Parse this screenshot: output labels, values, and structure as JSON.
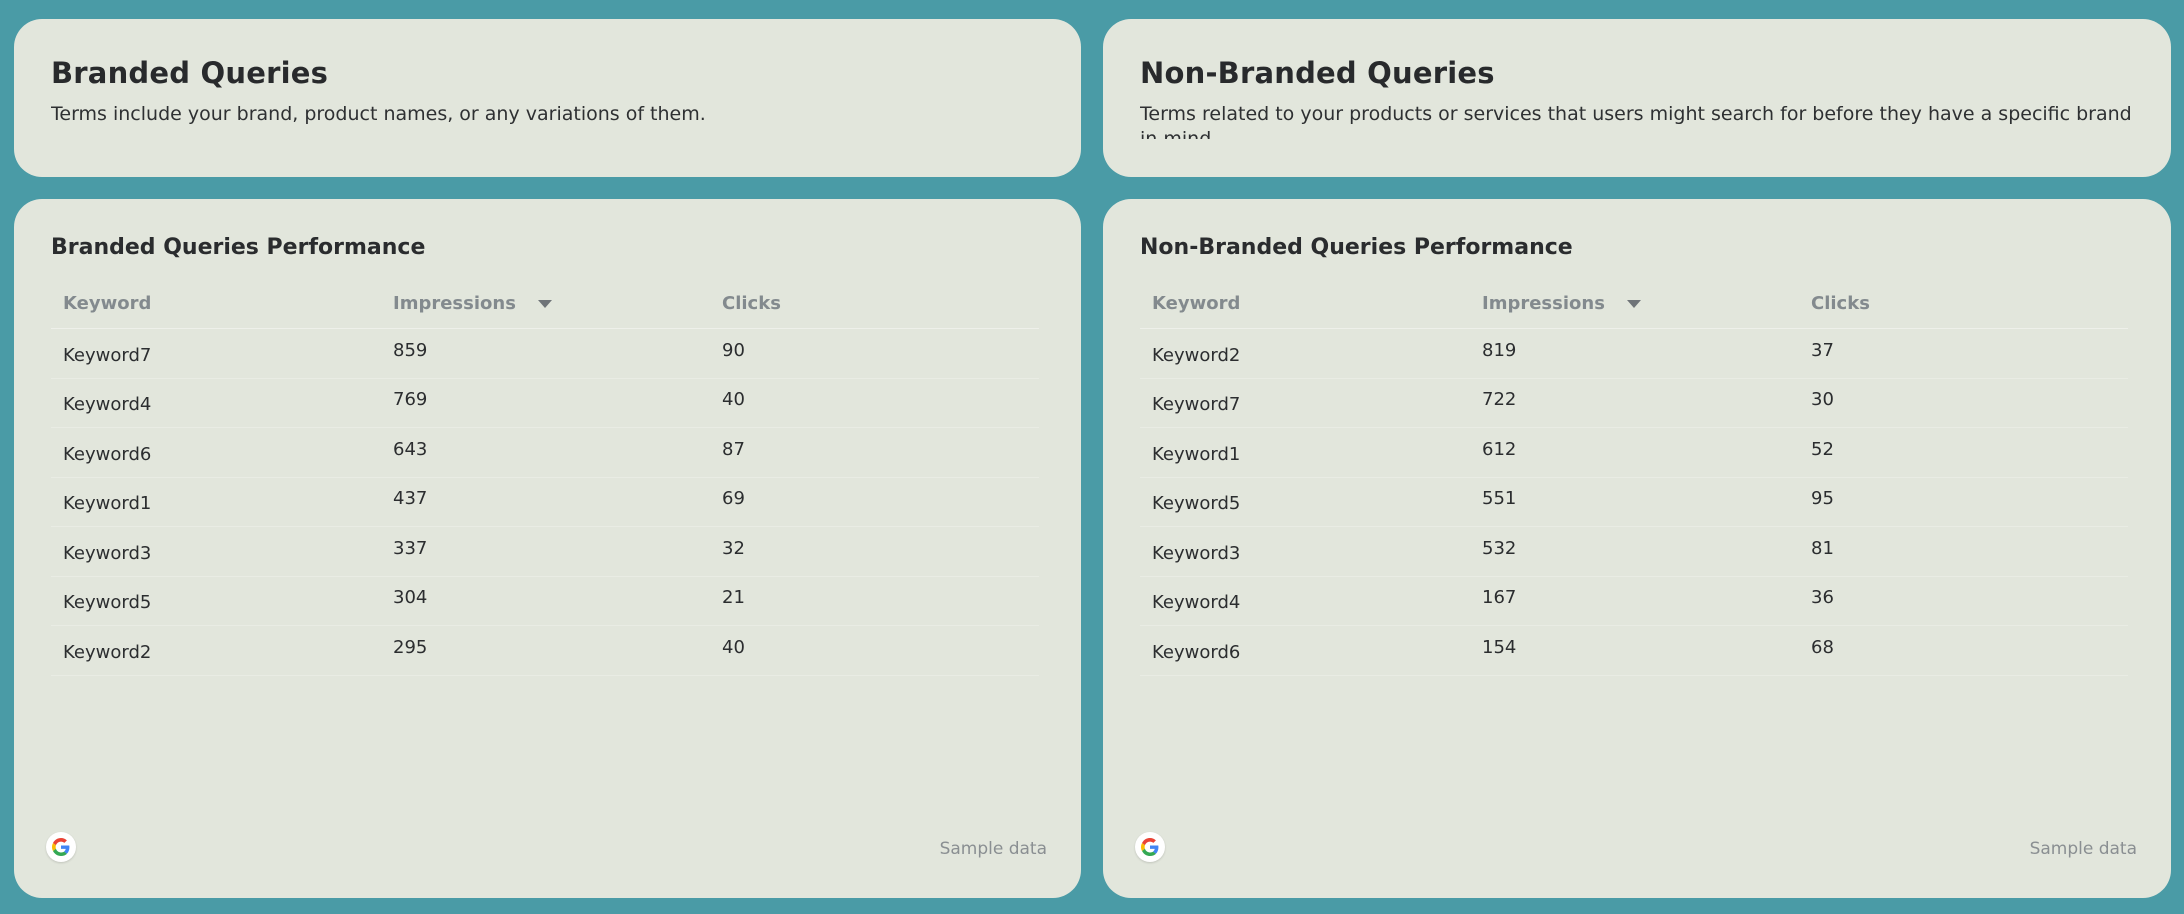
{
  "branded_header": {
    "title": "Branded Queries",
    "description": "Terms include your brand, product names, or any variations of them."
  },
  "nonbranded_header": {
    "title": "Non-Branded Queries",
    "description": "Terms related to your products or services that users might search for before they have a specific brand in mind."
  },
  "branded_table": {
    "title": "Branded Queries Performance",
    "columns": [
      "Keyword",
      "Impressions",
      "Clicks"
    ],
    "sort_icon": "caret-down-icon",
    "rows": [
      {
        "keyword": "Keyword7",
        "impressions": "859",
        "clicks": "90"
      },
      {
        "keyword": "Keyword4",
        "impressions": "769",
        "clicks": "40"
      },
      {
        "keyword": "Keyword6",
        "impressions": "643",
        "clicks": "87"
      },
      {
        "keyword": "Keyword1",
        "impressions": "437",
        "clicks": "69"
      },
      {
        "keyword": "Keyword3",
        "impressions": "337",
        "clicks": "32"
      },
      {
        "keyword": "Keyword5",
        "impressions": "304",
        "clicks": "21"
      },
      {
        "keyword": "Keyword2",
        "impressions": "295",
        "clicks": "40"
      }
    ],
    "footer_icon": "google-logo-icon",
    "footer_note": "Sample data"
  },
  "nonbranded_table": {
    "title": "Non-Branded Queries Performance",
    "columns": [
      "Keyword",
      "Impressions",
      "Clicks"
    ],
    "sort_icon": "caret-down-icon",
    "rows": [
      {
        "keyword": "Keyword2",
        "impressions": "819",
        "clicks": "37"
      },
      {
        "keyword": "Keyword7",
        "impressions": "722",
        "clicks": "30"
      },
      {
        "keyword": "Keyword1",
        "impressions": "612",
        "clicks": "52"
      },
      {
        "keyword": "Keyword5",
        "impressions": "551",
        "clicks": "95"
      },
      {
        "keyword": "Keyword3",
        "impressions": "532",
        "clicks": "81"
      },
      {
        "keyword": "Keyword4",
        "impressions": "167",
        "clicks": "36"
      },
      {
        "keyword": "Keyword6",
        "impressions": "154",
        "clicks": "68"
      }
    ],
    "footer_icon": "google-logo-icon",
    "footer_note": "Sample data"
  },
  "colors": {
    "background": "#4a9ba6",
    "card": "#e2e6dc",
    "header_text": "#838a8e",
    "body_text": "#2b2d2f"
  }
}
